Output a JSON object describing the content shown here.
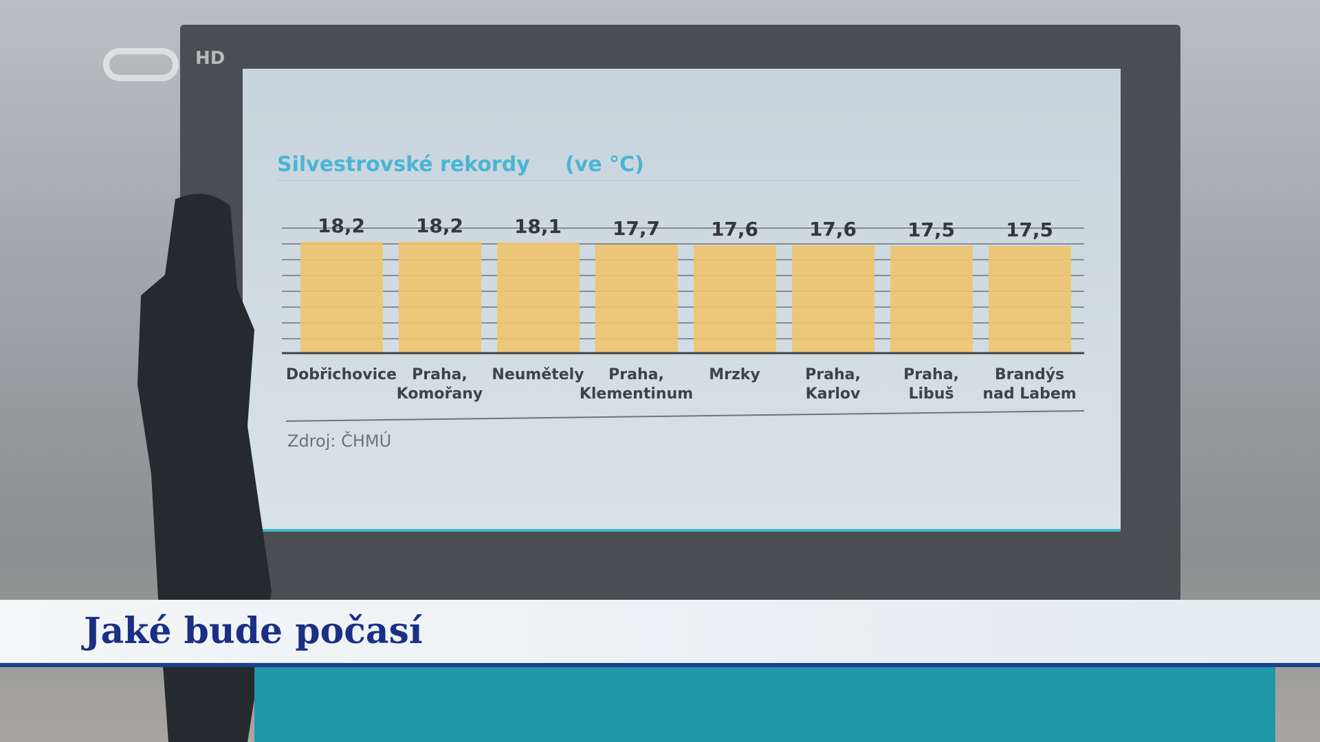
{
  "channel": {
    "badge": "HD"
  },
  "chart_data": {
    "type": "bar",
    "title": "Silvestrovské rekordy",
    "unit": "(ve °C)",
    "categories": [
      "Dobřichovice",
      "Praha,\nKomořany",
      "Neumětely",
      "Praha,\nKlementinum",
      "Mrzky",
      "Praha,\nKarlov",
      "Praha,\nLibuš",
      "Brandýs\nnad Labem"
    ],
    "values": [
      18.2,
      18.2,
      18.1,
      17.7,
      17.6,
      17.6,
      17.5,
      17.5
    ],
    "value_labels": [
      "18,2",
      "18,2",
      "18,1",
      "17,7",
      "17,6",
      "17,6",
      "17,5",
      "17,5"
    ],
    "color": "#f0c46e",
    "grid": true,
    "source": "Zdroj: ČHMÚ"
  },
  "lower_third": {
    "title": "Jaké bude počasí"
  }
}
